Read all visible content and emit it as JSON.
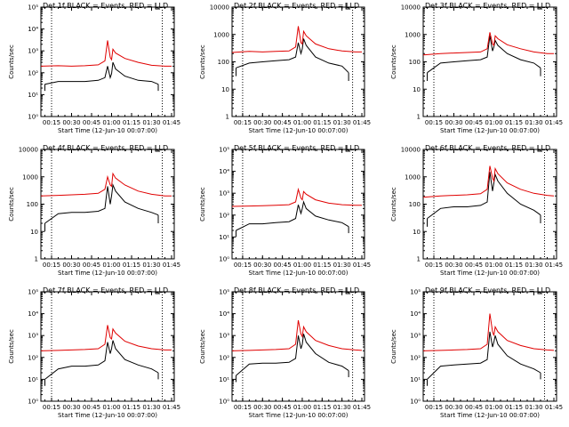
{
  "colors": {
    "events": "#000000",
    "lld": "#e00000",
    "axes": "#000000",
    "background": "#ffffff"
  },
  "chart_data": [
    {
      "type": "line",
      "title": "Det 1f BLACK = Events, RED = LLD",
      "xlabel": "Start Time (12-Jun-10 00:07:00)",
      "ylabel": "Counts/sec",
      "yscale": "log",
      "ylim": [
        1,
        100000
      ],
      "ytick_labels": [
        "10⁰",
        "10¹",
        "10²",
        "10³",
        "10⁴",
        "10⁵"
      ],
      "xlim": [
        "00:07",
        "01:47"
      ],
      "xtick_labels": [
        "00:15",
        "00:30",
        "00:45",
        "01:00",
        "01:15",
        "01:30",
        "01:45"
      ],
      "dotted_vlines": [
        "00:15",
        "01:38"
      ],
      "series": [
        {
          "color": "#000000",
          "x": [
            "00:10",
            "00:20",
            "00:30",
            "00:40",
            "00:50",
            "00:55",
            "00:57",
            "00:59",
            "01:00",
            "01:01",
            "01:03",
            "01:10",
            "01:20",
            "01:30",
            "01:35"
          ],
          "y": [
            30,
            40,
            40,
            40,
            45,
            60,
            200,
            60,
            90,
            300,
            150,
            70,
            45,
            40,
            30
          ]
        },
        {
          "color": "#e00000",
          "x": [
            "00:07",
            "00:20",
            "00:30",
            "00:40",
            "00:50",
            "00:55",
            "00:57",
            "00:59",
            "01:00",
            "01:01",
            "01:03",
            "01:10",
            "01:20",
            "01:30",
            "01:40",
            "01:45"
          ],
          "y": [
            200,
            210,
            200,
            210,
            230,
            350,
            3000,
            500,
            400,
            1200,
            800,
            450,
            300,
            220,
            200,
            200
          ]
        }
      ]
    },
    {
      "type": "line",
      "title": "Det 2f BLACK = Events, RED = LLD",
      "xlabel": "Start Time (12-Jun-10 00:07:00)",
      "ylabel": "Counts/sec",
      "yscale": "log",
      "ylim": [
        1,
        10000
      ],
      "ytick_labels": [
        "1",
        "10",
        "100",
        "1000",
        "10000"
      ],
      "xlim": [
        "00:07",
        "01:47"
      ],
      "xtick_labels": [
        "00:15",
        "00:30",
        "00:45",
        "01:00",
        "01:15",
        "01:30",
        "01:45"
      ],
      "dotted_vlines": [
        "00:15",
        "01:38"
      ],
      "series": [
        {
          "color": "#000000",
          "x": [
            "00:10",
            "00:20",
            "00:30",
            "00:40",
            "00:50",
            "00:55",
            "00:57",
            "00:59",
            "01:00",
            "01:01",
            "01:03",
            "01:10",
            "01:20",
            "01:30",
            "01:35"
          ],
          "y": [
            60,
            90,
            100,
            110,
            120,
            150,
            500,
            200,
            300,
            700,
            400,
            150,
            90,
            70,
            40
          ]
        },
        {
          "color": "#e00000",
          "x": [
            "00:07",
            "00:20",
            "00:30",
            "00:40",
            "00:50",
            "00:55",
            "00:57",
            "00:59",
            "01:00",
            "01:01",
            "01:03",
            "01:10",
            "01:20",
            "01:30",
            "01:40",
            "01:45"
          ],
          "y": [
            220,
            240,
            230,
            240,
            250,
            350,
            2000,
            500,
            450,
            1300,
            900,
            450,
            300,
            250,
            230,
            230
          ]
        }
      ]
    },
    {
      "type": "line",
      "title": "Det 3f BLACK = Events, RED = LLD",
      "xlabel": "Start Time (12-Jun-10 00:07:00)",
      "ylabel": "Counts/sec",
      "yscale": "log",
      "ylim": [
        1,
        10000
      ],
      "ytick_labels": [
        "1",
        "10",
        "100",
        "1000",
        "10000"
      ],
      "xlim": [
        "00:07",
        "01:47"
      ],
      "xtick_labels": [
        "00:15",
        "00:30",
        "00:45",
        "01:00",
        "01:15",
        "01:30",
        "01:45"
      ],
      "dotted_vlines": [
        "00:15",
        "01:38"
      ],
      "series": [
        {
          "color": "#000000",
          "x": [
            "00:10",
            "00:20",
            "00:30",
            "00:40",
            "00:50",
            "00:55",
            "00:57",
            "00:59",
            "01:00",
            "01:01",
            "01:03",
            "01:10",
            "01:20",
            "01:30",
            "01:35"
          ],
          "y": [
            40,
            90,
            100,
            110,
            120,
            150,
            900,
            250,
            350,
            600,
            400,
            200,
            120,
            90,
            60
          ]
        },
        {
          "color": "#e00000",
          "x": [
            "00:07",
            "00:20",
            "00:30",
            "00:40",
            "00:50",
            "00:55",
            "00:57",
            "00:59",
            "01:00",
            "01:01",
            "01:03",
            "01:10",
            "01:20",
            "01:30",
            "01:40",
            "01:45"
          ],
          "y": [
            180,
            200,
            210,
            220,
            230,
            300,
            1200,
            450,
            400,
            900,
            700,
            420,
            300,
            230,
            200,
            200
          ]
        }
      ]
    },
    {
      "type": "line",
      "title": "Det 4f BLACK = Events, RED = LLD",
      "xlabel": "Start Time (12-Jun-10 00:07:00)",
      "ylabel": "Counts/sec",
      "yscale": "log",
      "ylim": [
        1,
        10000
      ],
      "ytick_labels": [
        "1",
        "10",
        "100",
        "1000",
        "10000"
      ],
      "xlim": [
        "00:07",
        "01:47"
      ],
      "xtick_labels": [
        "00:15",
        "00:30",
        "00:45",
        "01:00",
        "01:15",
        "01:30",
        "01:45"
      ],
      "dotted_vlines": [
        "00:15",
        "01:38"
      ],
      "series": [
        {
          "color": "#000000",
          "x": [
            "00:10",
            "00:20",
            "00:30",
            "00:40",
            "00:50",
            "00:55",
            "00:57",
            "00:59",
            "01:00",
            "01:01",
            "01:03",
            "01:10",
            "01:20",
            "01:30",
            "01:35"
          ],
          "y": [
            20,
            45,
            50,
            50,
            55,
            70,
            450,
            100,
            200,
            500,
            300,
            120,
            70,
            50,
            40
          ]
        },
        {
          "color": "#e00000",
          "x": [
            "00:07",
            "00:20",
            "00:30",
            "00:40",
            "00:50",
            "00:55",
            "00:57",
            "00:59",
            "01:00",
            "01:01",
            "01:03",
            "01:10",
            "01:20",
            "01:30",
            "01:40",
            "01:45"
          ],
          "y": [
            200,
            210,
            220,
            230,
            250,
            350,
            1000,
            500,
            450,
            1300,
            900,
            500,
            300,
            230,
            200,
            200
          ]
        }
      ]
    },
    {
      "type": "line",
      "title": "Det 5f BLACK = Events, RED = LLD",
      "xlabel": "Start Time (12-Jun-10 00:07:00)",
      "ylabel": "Counts/sec",
      "yscale": "log",
      "ylim": [
        1,
        100000
      ],
      "ytick_labels": [
        "10⁰",
        "10¹",
        "10²",
        "10³",
        "10⁴",
        "10⁵"
      ],
      "xlim": [
        "00:07",
        "01:47"
      ],
      "xtick_labels": [
        "00:15",
        "00:30",
        "00:45",
        "01:00",
        "01:15",
        "01:30",
        "01:45"
      ],
      "dotted_vlines": [
        "00:15",
        "01:38"
      ],
      "series": [
        {
          "color": "#000000",
          "x": [
            "00:10",
            "00:20",
            "00:30",
            "00:40",
            "00:50",
            "00:55",
            "00:57",
            "00:59",
            "01:00",
            "01:01",
            "01:03",
            "01:10",
            "01:20",
            "01:30",
            "01:35"
          ],
          "y": [
            20,
            40,
            40,
            45,
            50,
            70,
            300,
            120,
            200,
            400,
            200,
            90,
            60,
            45,
            30
          ]
        },
        {
          "color": "#e00000",
          "x": [
            "00:07",
            "00:20",
            "00:30",
            "00:40",
            "00:50",
            "00:55",
            "00:57",
            "00:59",
            "01:00",
            "01:01",
            "01:03",
            "01:10",
            "01:20",
            "01:30",
            "01:40",
            "01:45"
          ],
          "y": [
            250,
            260,
            270,
            280,
            300,
            400,
            1500,
            600,
            500,
            1200,
            900,
            500,
            350,
            300,
            280,
            280
          ]
        }
      ]
    },
    {
      "type": "line",
      "title": "Det 6f BLACK = Events, RED = LLD",
      "xlabel": "Start Time (12-Jun-10 00:07:00)",
      "ylabel": "Counts/sec",
      "yscale": "log",
      "ylim": [
        1,
        10000
      ],
      "ytick_labels": [
        "1",
        "10",
        "100",
        "1000",
        "10000"
      ],
      "xlim": [
        "00:07",
        "01:47"
      ],
      "xtick_labels": [
        "00:15",
        "00:30",
        "00:45",
        "01:00",
        "01:15",
        "01:30",
        "01:45"
      ],
      "dotted_vlines": [
        "00:15",
        "01:38"
      ],
      "series": [
        {
          "color": "#000000",
          "x": [
            "00:10",
            "00:20",
            "00:30",
            "00:40",
            "00:50",
            "00:55",
            "00:57",
            "00:59",
            "01:00",
            "01:01",
            "01:03",
            "01:10",
            "01:20",
            "01:30",
            "01:35"
          ],
          "y": [
            30,
            70,
            80,
            80,
            90,
            120,
            1500,
            300,
            600,
            1200,
            700,
            250,
            100,
            60,
            40
          ]
        },
        {
          "color": "#e00000",
          "x": [
            "00:07",
            "00:20",
            "00:30",
            "00:40",
            "00:50",
            "00:55",
            "00:57",
            "00:59",
            "01:00",
            "01:01",
            "01:03",
            "01:10",
            "01:20",
            "01:30",
            "01:40",
            "01:45"
          ],
          "y": [
            180,
            200,
            210,
            220,
            240,
            350,
            2500,
            900,
            700,
            2000,
            1300,
            600,
            350,
            250,
            210,
            200
          ]
        }
      ]
    },
    {
      "type": "line",
      "title": "Det 7f BLACK = Events, RED = LLD",
      "xlabel": "Start Time (12-Jun-10 00:07:00)",
      "ylabel": "Counts/sec",
      "yscale": "log",
      "ylim": [
        1,
        100000
      ],
      "ytick_labels": [
        "10⁰",
        "10¹",
        "10²",
        "10³",
        "10⁴",
        "10⁵"
      ],
      "xlim": [
        "00:07",
        "01:47"
      ],
      "xtick_labels": [
        "00:15",
        "00:30",
        "00:45",
        "01:00",
        "01:15",
        "01:30",
        "01:45"
      ],
      "dotted_vlines": [
        "00:15",
        "01:38"
      ],
      "series": [
        {
          "color": "#000000",
          "x": [
            "00:10",
            "00:20",
            "00:30",
            "00:40",
            "00:50",
            "00:55",
            "00:57",
            "00:59",
            "01:00",
            "01:01",
            "01:03",
            "01:10",
            "01:20",
            "01:30",
            "01:35"
          ],
          "y": [
            10,
            30,
            40,
            40,
            45,
            70,
            500,
            150,
            250,
            600,
            250,
            80,
            45,
            30,
            20
          ]
        },
        {
          "color": "#e00000",
          "x": [
            "00:07",
            "00:20",
            "00:30",
            "00:40",
            "00:50",
            "00:55",
            "00:57",
            "00:59",
            "01:00",
            "01:01",
            "01:03",
            "01:10",
            "01:20",
            "01:30",
            "01:40",
            "01:45"
          ],
          "y": [
            200,
            210,
            220,
            230,
            250,
            400,
            3000,
            800,
            700,
            2000,
            1300,
            550,
            330,
            250,
            220,
            220
          ]
        }
      ]
    },
    {
      "type": "line",
      "title": "Det 8f BLACK = Events, RED = LLD",
      "xlabel": "Start Time (12-Jun-10 00:07:00)",
      "ylabel": "Counts/sec",
      "yscale": "log",
      "ylim": [
        1,
        100000
      ],
      "ytick_labels": [
        "10⁰",
        "10¹",
        "10²",
        "10³",
        "10⁴",
        "10⁵"
      ],
      "xlim": [
        "00:07",
        "01:47"
      ],
      "xtick_labels": [
        "00:15",
        "00:30",
        "00:45",
        "01:00",
        "01:15",
        "01:30",
        "01:45"
      ],
      "dotted_vlines": [
        "00:15",
        "01:38"
      ],
      "series": [
        {
          "color": "#000000",
          "x": [
            "00:10",
            "00:20",
            "00:30",
            "00:40",
            "00:50",
            "00:55",
            "00:57",
            "00:59",
            "01:00",
            "01:01",
            "01:03",
            "01:10",
            "01:20",
            "01:30",
            "01:35"
          ],
          "y": [
            15,
            50,
            55,
            55,
            60,
            90,
            1000,
            250,
            400,
            1200,
            500,
            150,
            60,
            40,
            25
          ]
        },
        {
          "color": "#e00000",
          "x": [
            "00:07",
            "00:20",
            "00:30",
            "00:40",
            "00:50",
            "00:55",
            "00:57",
            "00:59",
            "01:00",
            "01:01",
            "01:03",
            "01:10",
            "01:20",
            "01:30",
            "01:40",
            "01:45"
          ],
          "y": [
            200,
            210,
            220,
            230,
            250,
            400,
            5000,
            1200,
            900,
            2500,
            1500,
            600,
            350,
            250,
            220,
            210
          ]
        }
      ]
    },
    {
      "type": "line",
      "title": "Det 9f BLACK = Events, RED = LLD",
      "xlabel": "Start Time (12-Jun-10 00:07:00)",
      "ylabel": "Counts/sec",
      "yscale": "log",
      "ylim": [
        1,
        100000
      ],
      "ytick_labels": [
        "10⁰",
        "10¹",
        "10²",
        "10³",
        "10⁴",
        "10⁵"
      ],
      "xlim": [
        "00:07",
        "01:47"
      ],
      "xtick_labels": [
        "00:15",
        "00:30",
        "00:45",
        "01:00",
        "01:15",
        "01:30",
        "01:45"
      ],
      "dotted_vlines": [
        "00:15",
        "01:38"
      ],
      "series": [
        {
          "color": "#000000",
          "x": [
            "00:10",
            "00:20",
            "00:30",
            "00:40",
            "00:50",
            "00:55",
            "00:57",
            "00:59",
            "01:00",
            "01:01",
            "01:03",
            "01:10",
            "01:20",
            "01:30",
            "01:35"
          ],
          "y": [
            10,
            40,
            45,
            50,
            55,
            80,
            1500,
            300,
            500,
            1000,
            400,
            120,
            50,
            30,
            20
          ]
        },
        {
          "color": "#e00000",
          "x": [
            "00:07",
            "00:20",
            "00:30",
            "00:40",
            "00:50",
            "00:55",
            "00:57",
            "00:59",
            "01:00",
            "01:01",
            "01:03",
            "01:10",
            "01:20",
            "01:30",
            "01:40",
            "01:45"
          ],
          "y": [
            200,
            210,
            220,
            230,
            250,
            400,
            10000,
            1500,
            1000,
            2500,
            1500,
            600,
            350,
            250,
            220,
            210
          ]
        }
      ]
    }
  ]
}
